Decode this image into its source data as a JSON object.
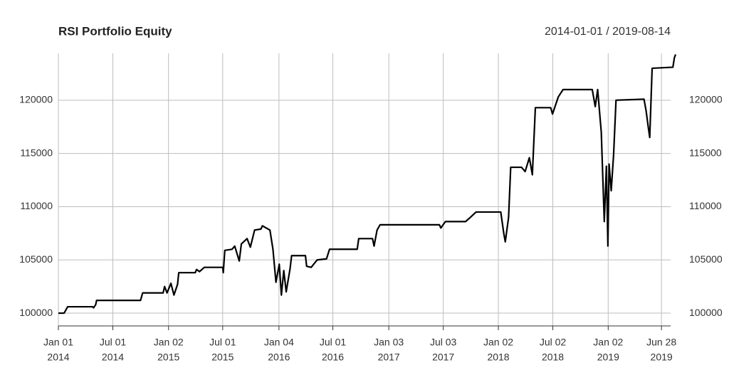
{
  "chart_data": {
    "type": "line",
    "title": "RSI Portfolio Equity",
    "subtitle": "2014-01-01 / 2019-08-14",
    "x": [
      "2014-01-01",
      "2014-01-20",
      "2014-02-01",
      "2014-04-25",
      "2014-04-28",
      "2014-05-05",
      "2014-05-08",
      "2014-10-01",
      "2014-10-08",
      "2014-12-15",
      "2014-12-20",
      "2014-12-28",
      "2015-01-10",
      "2015-01-20",
      "2015-02-01",
      "2015-02-05",
      "2015-04-01",
      "2015-04-05",
      "2015-04-15",
      "2015-05-01",
      "2015-07-01",
      "2015-07-03",
      "2015-07-08",
      "2015-08-01",
      "2015-08-10",
      "2015-08-25",
      "2015-09-01",
      "2015-09-20",
      "2015-10-01",
      "2015-10-15",
      "2015-11-05",
      "2015-11-10",
      "2015-12-05",
      "2015-12-15",
      "2015-12-25",
      "2016-01-05",
      "2016-01-12",
      "2016-01-20",
      "2016-01-28",
      "2016-02-10",
      "2016-02-15",
      "2016-04-01",
      "2016-04-05",
      "2016-04-20",
      "2016-05-10",
      "2016-06-10",
      "2016-06-20",
      "2016-09-20",
      "2016-09-25",
      "2016-11-10",
      "2016-11-15",
      "2016-11-25",
      "2016-12-05",
      "2017-06-20",
      "2017-06-25",
      "2017-07-10",
      "2017-09-15",
      "2017-10-01",
      "2017-10-20",
      "2018-01-10",
      "2018-01-20",
      "2018-01-25",
      "2018-02-05",
      "2018-02-12",
      "2018-03-20",
      "2018-04-01",
      "2018-04-15",
      "2018-04-25",
      "2018-05-05",
      "2018-06-25",
      "2018-07-01",
      "2018-07-20",
      "2018-08-05",
      "2018-11-10",
      "2018-11-20",
      "2018-11-28",
      "2018-12-10",
      "2018-12-20",
      "2018-12-27",
      "2019-01-01",
      "2019-01-05",
      "2019-01-12",
      "2019-01-20",
      "2019-01-28",
      "2019-05-01",
      "2019-05-08",
      "2019-05-15",
      "2019-05-20",
      "2019-05-28",
      "2019-08-05",
      "2019-08-10",
      "2019-08-14"
    ],
    "series": [
      {
        "name": "Equity",
        "color": "#000000",
        "values": [
          100000,
          100000,
          100600,
          100600,
          100500,
          100800,
          101200,
          101200,
          101900,
          101900,
          102500,
          101900,
          102800,
          101700,
          102700,
          103800,
          103800,
          104100,
          103900,
          104300,
          104300,
          103800,
          105900,
          106000,
          106300,
          104900,
          106500,
          107000,
          106200,
          107800,
          107900,
          108200,
          107800,
          106000,
          102900,
          104600,
          101700,
          104000,
          102000,
          104200,
          105400,
          105400,
          104400,
          104300,
          105000,
          105100,
          106000,
          106000,
          107000,
          107000,
          106300,
          107800,
          108300,
          108300,
          108000,
          108600,
          108600,
          109000,
          109500,
          109500,
          107500,
          106700,
          109000,
          113700,
          113700,
          113300,
          114600,
          113000,
          119300,
          119300,
          118700,
          120300,
          121000,
          121000,
          119400,
          121000,
          117000,
          108600,
          113800,
          106300,
          114000,
          111500,
          114900,
          120000,
          120100,
          119000,
          117500,
          116500,
          123000,
          123100,
          124000,
          124300
        ]
      }
    ],
    "xlim": [
      "2014-01-01",
      "2019-08-14"
    ],
    "xticks": [
      {
        "value": "2014-01-01",
        "label": [
          "Jan 01",
          "2014"
        ]
      },
      {
        "value": "2014-07-01",
        "label": [
          "Jul 01",
          "2014"
        ]
      },
      {
        "value": "2015-01-02",
        "label": [
          "Jan 02",
          "2015"
        ]
      },
      {
        "value": "2015-07-01",
        "label": [
          "Jul 01",
          "2015"
        ]
      },
      {
        "value": "2016-01-04",
        "label": [
          "Jan 04",
          "2016"
        ]
      },
      {
        "value": "2016-07-01",
        "label": [
          "Jul 01",
          "2016"
        ]
      },
      {
        "value": "2017-01-03",
        "label": [
          "Jan 03",
          "2017"
        ]
      },
      {
        "value": "2017-07-03",
        "label": [
          "Jul 03",
          "2017"
        ]
      },
      {
        "value": "2018-01-02",
        "label": [
          "Jan 02",
          "2018"
        ]
      },
      {
        "value": "2018-07-02",
        "label": [
          "Jul 02",
          "2018"
        ]
      },
      {
        "value": "2019-01-02",
        "label": [
          "Jan 02",
          "2019"
        ]
      },
      {
        "value": "2019-06-28",
        "label": [
          "Jun 28",
          "2019"
        ]
      }
    ],
    "ylim": [
      98800,
      124400
    ],
    "yticks": [
      100000,
      105000,
      110000,
      115000,
      120000
    ],
    "grid": true
  }
}
